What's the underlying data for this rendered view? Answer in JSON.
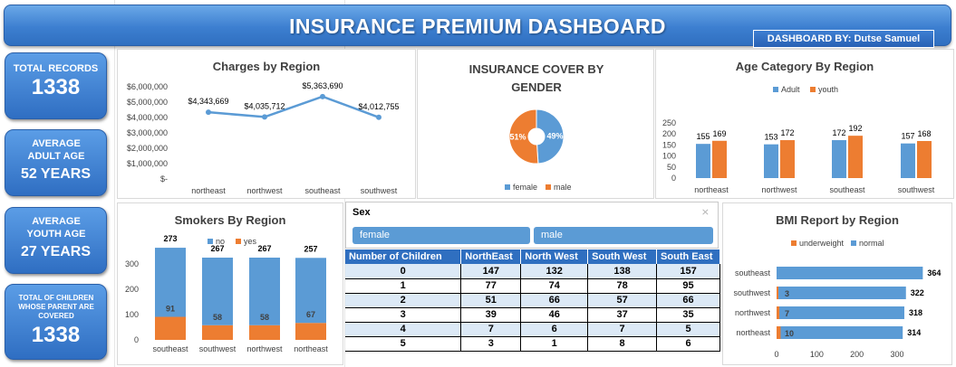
{
  "header": {
    "title": "INSURANCE PREMIUM DASHBOARD",
    "author": "DASHBOARD BY: Dutse Samuel"
  },
  "kpis": [
    {
      "label": "TOTAL RECORDS",
      "value": "1338"
    },
    {
      "label": "AVERAGE ADULT AGE",
      "value": "52 YEARS"
    },
    {
      "label": "AVERAGE YOUTH AGE",
      "value": "27 YEARS"
    },
    {
      "label": "TOTAL OF CHILDREN WHOSE PARENT ARE COVERED",
      "value": "1338"
    }
  ],
  "colors": {
    "blue": "#5b9bd5",
    "orange": "#ed7d31",
    "line": "#5b9bd5",
    "header_blue": "#2f6fc0"
  },
  "slicer": {
    "title": "Sex",
    "options": [
      "female",
      "male"
    ]
  },
  "table": {
    "headers": [
      "Number of Children",
      "NorthEast",
      "North West",
      "South West",
      "South East"
    ],
    "rows": [
      [
        "0",
        "147",
        "132",
        "138",
        "157"
      ],
      [
        "1",
        "77",
        "74",
        "78",
        "95"
      ],
      [
        "2",
        "51",
        "66",
        "57",
        "66"
      ],
      [
        "3",
        "39",
        "46",
        "37",
        "35"
      ],
      [
        "4",
        "7",
        "6",
        "7",
        "5"
      ],
      [
        "5",
        "3",
        "1",
        "8",
        "6"
      ]
    ]
  },
  "chart_data": [
    {
      "type": "line",
      "title": "Charges by Region",
      "categories": [
        "northeast",
        "northwest",
        "southeast",
        "southwest"
      ],
      "values": [
        4343669,
        4035712,
        5363690,
        4012755
      ],
      "data_labels": [
        "$4,343,669",
        "$4,035,712",
        "$5,363,690",
        "$4,012,755"
      ],
      "y_ticks": [
        "$6,000,000",
        "$5,000,000",
        "$4,000,000",
        "$3,000,000",
        "$2,000,000",
        "$1,000,000",
        "$-"
      ],
      "ylim": [
        0,
        6000000
      ]
    },
    {
      "type": "pie",
      "title": "INSURANCE COVER BY GENDER",
      "labels": [
        "female",
        "male"
      ],
      "values": [
        49,
        51
      ],
      "data_labels": [
        "49%",
        "51%"
      ],
      "legend": [
        "female",
        "male"
      ]
    },
    {
      "type": "bar",
      "title": "Age Category By Region",
      "categories": [
        "northeast",
        "northwest",
        "southeast",
        "southwest"
      ],
      "series": [
        {
          "name": "Adult",
          "values": [
            155,
            153,
            172,
            157
          ]
        },
        {
          "name": "youth",
          "values": [
            169,
            172,
            192,
            168
          ]
        }
      ],
      "y_ticks": [
        "250",
        "200",
        "150",
        "100",
        "50",
        "0"
      ],
      "ylim": [
        0,
        250
      ]
    },
    {
      "type": "bar",
      "title": "Smokers By Region",
      "categories": [
        "southeast",
        "southwest",
        "northwest",
        "northeast"
      ],
      "series": [
        {
          "name": "no",
          "values": [
            273,
            267,
            267,
            257
          ]
        },
        {
          "name": "yes",
          "values": [
            91,
            58,
            58,
            67
          ]
        }
      ],
      "y_ticks": [
        "300",
        "200",
        "100",
        "0"
      ],
      "ylim": [
        0,
        300
      ]
    },
    {
      "type": "bar",
      "title": "BMI Report by Region",
      "categories": [
        "southeast",
        "southwest",
        "northwest",
        "northeast"
      ],
      "series": [
        {
          "name": "underweight",
          "values": [
            0,
            3,
            7,
            10
          ]
        },
        {
          "name": "normal",
          "values": [
            364,
            322,
            318,
            314
          ]
        }
      ],
      "data_labels_underweight": [
        "",
        "3",
        "7",
        "10"
      ],
      "x_ticks": [
        "0",
        "100",
        "200",
        "300"
      ],
      "xlim": [
        0,
        400
      ]
    }
  ]
}
